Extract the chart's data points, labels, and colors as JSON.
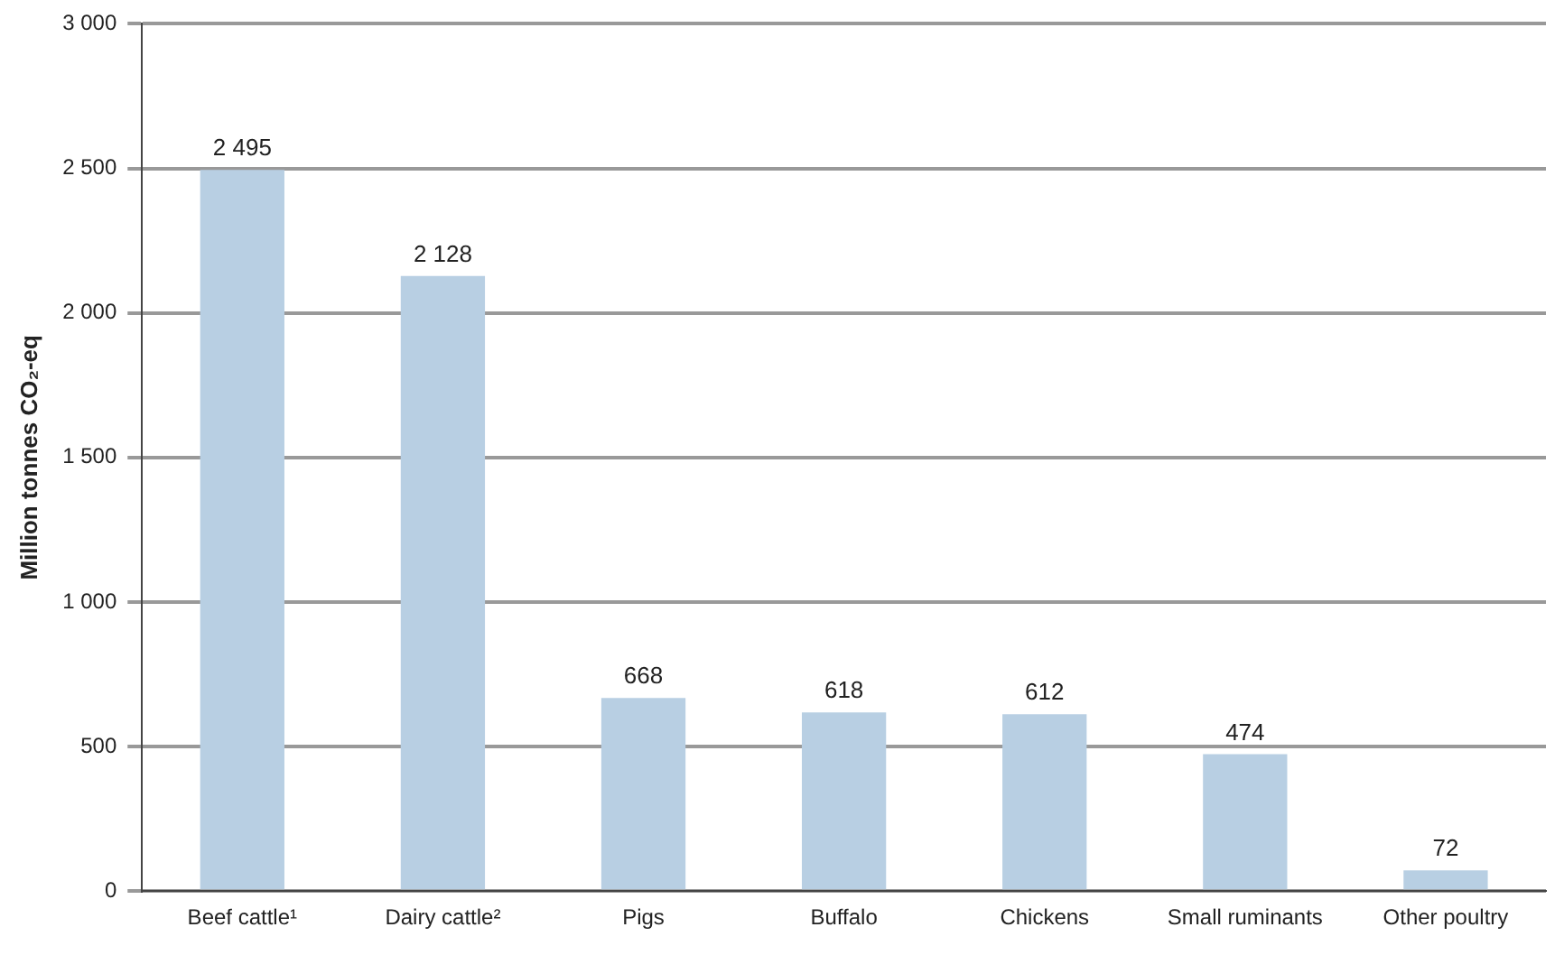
{
  "chart_data": {
    "type": "bar",
    "ylabel": "Million tonnes CO₂-eq",
    "categories": [
      "Beef cattle¹",
      "Dairy cattle²",
      "Pigs",
      "Buffalo",
      "Chickens",
      "Small ruminants",
      "Other poultry"
    ],
    "values": [
      2495,
      2128,
      668,
      618,
      612,
      474,
      72
    ],
    "value_labels": [
      "2 495",
      "2 128",
      "668",
      "618",
      "612",
      "474",
      "72"
    ],
    "color": "#b8cfe3",
    "ylim": [
      0,
      3000
    ],
    "yticks": [
      {
        "value": 0,
        "label": "0"
      },
      {
        "value": 500,
        "label": "500"
      },
      {
        "value": 1000,
        "label": "1 000"
      },
      {
        "value": 1500,
        "label": "1 500"
      },
      {
        "value": 2000,
        "label": "2 000"
      },
      {
        "value": 2500,
        "label": "2 500"
      },
      {
        "value": 3000,
        "label": "3 000"
      }
    ],
    "grid": "y"
  }
}
